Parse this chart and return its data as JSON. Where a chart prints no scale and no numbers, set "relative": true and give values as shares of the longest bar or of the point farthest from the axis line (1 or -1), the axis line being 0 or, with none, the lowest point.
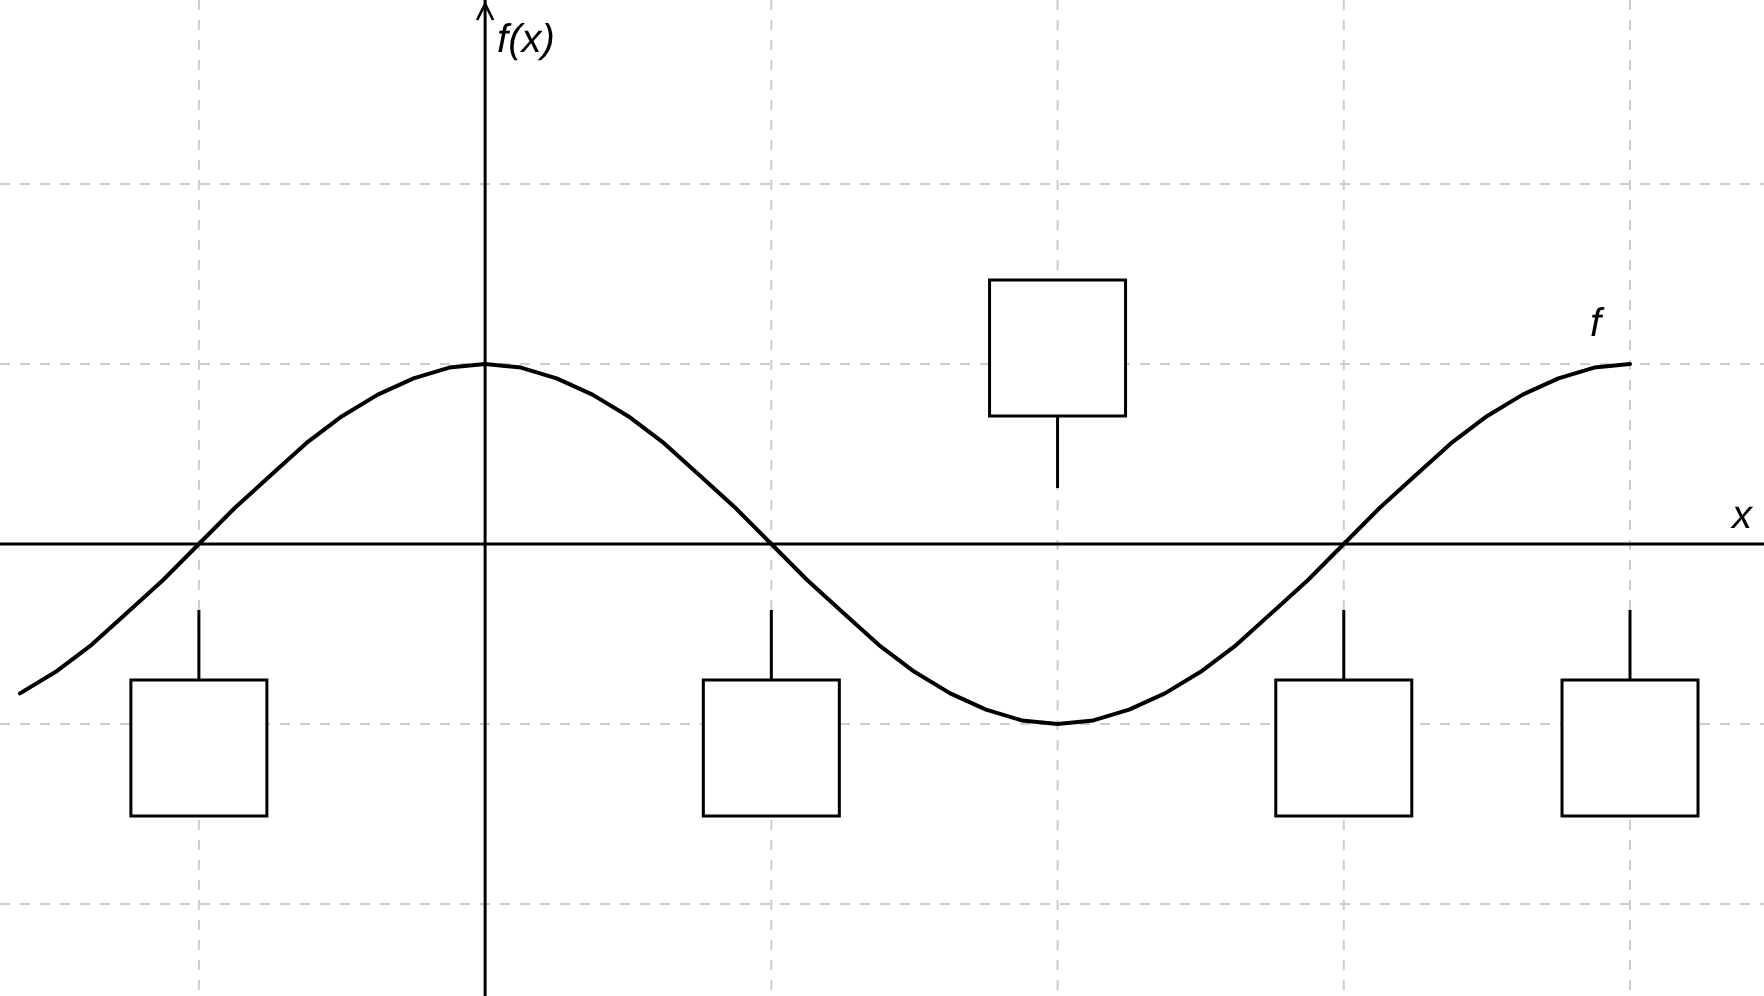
{
  "chart_data": {
    "type": "line",
    "relative": true,
    "grid": true,
    "tick_labels": false,
    "xlabel": "x",
    "annotations": [
      "f(x)",
      "f"
    ],
    "categories": [
      null,
      null,
      null,
      null,
      null,
      null,
      null,
      null,
      null,
      null,
      null,
      null,
      null,
      null,
      null,
      null,
      null,
      null,
      null,
      null,
      null,
      null,
      null,
      null,
      null,
      null,
      null,
      null,
      null,
      null,
      null,
      null,
      null,
      null,
      null,
      null,
      null,
      null,
      null,
      null,
      null,
      null,
      null,
      null,
      null,
      null
    ],
    "series": [
      {
        "color": "#000000",
        "values": [
          -0.83,
          -0.71,
          -0.56,
          -0.38,
          -0.2,
          0,
          0.2,
          0.38,
          0.56,
          0.71,
          0.83,
          0.92,
          0.98,
          1,
          0.98,
          0.92,
          0.83,
          0.71,
          0.56,
          0.38,
          0.2,
          0,
          -0.2,
          -0.38,
          -0.56,
          -0.71,
          -0.83,
          -0.92,
          -0.98,
          -1,
          -0.98,
          -0.92,
          -0.83,
          -0.71,
          -0.56,
          -0.38,
          -0.2,
          0,
          0.2,
          0.38,
          0.56,
          0.71,
          0.83,
          0.92,
          0.98,
          1
        ]
      }
    ]
  }
}
